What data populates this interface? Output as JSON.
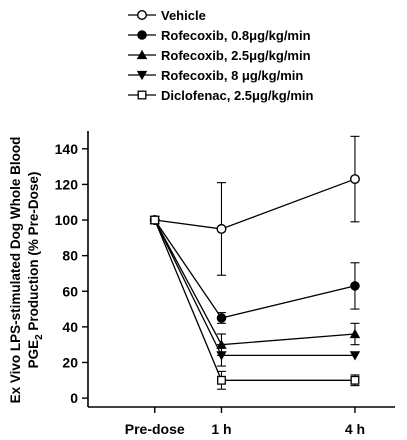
{
  "chart_data": {
    "type": "line",
    "categories": [
      "Pre-dose",
      "1 h",
      "4 h"
    ],
    "x_positions": [
      0,
      1,
      3
    ],
    "ylim": [
      -5,
      150
    ],
    "yticks": [
      0,
      20,
      40,
      60,
      80,
      100,
      120,
      140
    ],
    "ylabel_line1": "Ex Vivo LPS-stimulated Dog Whole Blood",
    "ylabel_line2_pre": "PGE",
    "ylabel_line2_sub": "2",
    "ylabel_line2_post": " Production (% Pre-Dose)",
    "xlabel": "",
    "title": "",
    "grid": false,
    "legend_position": "top",
    "series": [
      {
        "name": "Vehicle",
        "marker": "circle-open",
        "values": [
          100,
          95,
          123
        ],
        "errors": [
          null,
          26,
          24
        ]
      },
      {
        "name": "Rofecoxib, 0.8μg/kg/min",
        "marker": "circle-filled",
        "values": [
          100,
          45,
          63
        ],
        "errors": [
          null,
          3,
          13
        ]
      },
      {
        "name": "Rofecoxib, 2.5μg/kg/min",
        "marker": "triangle-up",
        "values": [
          100,
          30,
          36
        ],
        "errors": [
          null,
          6,
          6
        ]
      },
      {
        "name": "Rofecoxib, 8 μg/kg/min",
        "marker": "triangle-down",
        "values": [
          100,
          24,
          24
        ],
        "errors": [
          null,
          6,
          null
        ]
      },
      {
        "name": "Diclofenac, 2.5μg/kg/min",
        "marker": "square-open",
        "values": [
          100,
          10,
          10
        ],
        "errors": [
          null,
          5,
          3
        ]
      }
    ]
  }
}
